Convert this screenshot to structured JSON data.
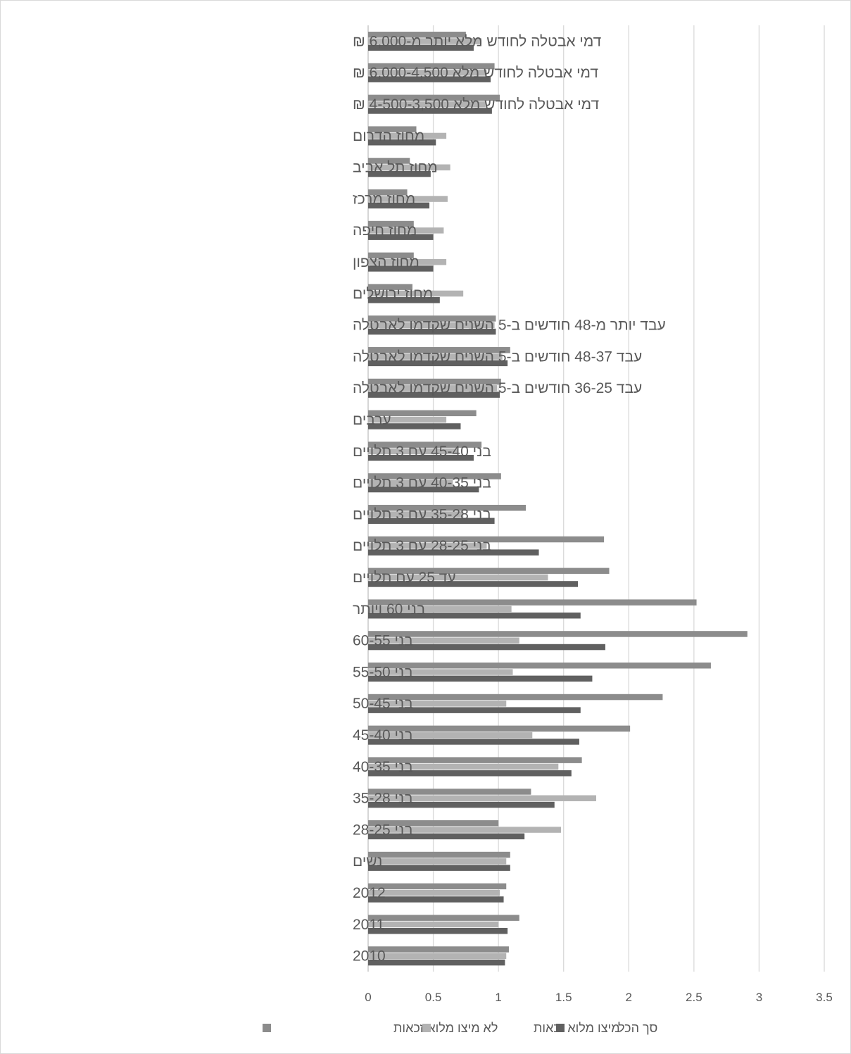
{
  "chart_data": {
    "type": "bar",
    "orientation": "horizontal",
    "categories": [
      "דמי אבטלה לחודש מלא יותר מ-6,000 ₪",
      "דמי אבטלה לחודש מלא 6,000-4,500 ₪",
      "דמי אבטלה לחודש מלא 4-500-3,500 ₪",
      "מחוז הדרום",
      "מחוז תל אביב",
      "מחוז מרכז",
      "מחוז חיפה",
      "מחוז הצפון",
      "מחוז ירושלים",
      "עבד יותר מ-48 חודשים ב-5 השנים שקדמו לאבטלה",
      "עבד 48-37 חודשים ב-5 השנים שקדמו לאבטלה",
      "עבד 36-25 חודשים ב-5 השנים שקדמו לאבטלה",
      "ערבים",
      "בני 45-40 עם 3 תלויים",
      "בני 40-35 עם 3 תלויים",
      "בני 35-28 עם 3 תלויים",
      "בני 28-25 עם 3 תלויים",
      "עד 25 עם תלויים",
      "בני 60 ויותר",
      "בני 60-55",
      "בני 55-50",
      "בני 50-45",
      "בני 45-40",
      "בני 40-35",
      "בני 35-28",
      "בני 28-25",
      "נשים",
      "2012",
      "2011",
      "2010"
    ],
    "series": [
      {
        "name": "לא מיצו מלוא זכאות",
        "color": "#8c8c8c",
        "values": [
          0.75,
          0.97,
          1.01,
          0.37,
          0.32,
          0.3,
          0.35,
          0.35,
          0.34,
          0.98,
          1.09,
          1.02,
          0.83,
          0.87,
          1.02,
          1.21,
          1.81,
          1.85,
          2.52,
          2.91,
          2.63,
          2.26,
          2.01,
          1.64,
          1.25,
          1.0,
          1.09,
          1.06,
          1.16,
          1.08
        ]
      },
      {
        "name": "מיצו מלוא זכאות",
        "color": "#b3b3b3",
        "values": [
          0.87,
          0.91,
          0.9,
          0.6,
          0.63,
          0.61,
          0.58,
          0.6,
          0.73,
          0.97,
          1.03,
          0.99,
          0.6,
          0.69,
          0.65,
          0.73,
          0.91,
          1.38,
          1.1,
          1.16,
          1.11,
          1.06,
          1.26,
          1.46,
          1.75,
          1.48,
          1.06,
          1.01,
          1.0,
          1.06
        ]
      },
      {
        "name": "סך הכל",
        "color": "#606060",
        "values": [
          0.81,
          0.94,
          0.95,
          0.52,
          0.48,
          0.47,
          0.5,
          0.5,
          0.55,
          0.98,
          1.07,
          1.01,
          0.71,
          0.81,
          0.85,
          0.97,
          1.31,
          1.61,
          1.63,
          1.82,
          1.72,
          1.63,
          1.62,
          1.56,
          1.43,
          1.2,
          1.09,
          1.04,
          1.07,
          1.05
        ]
      }
    ],
    "xlim": [
      0,
      3.5
    ],
    "x_ticks": [
      0,
      0.5,
      1,
      1.5,
      2,
      2.5,
      3,
      3.5
    ],
    "x_tick_labels": [
      "0",
      "0.5",
      "1",
      "1.5",
      "2",
      "2.5",
      "3",
      "3.5"
    ],
    "grid": true,
    "legend_position": "bottom",
    "title": "",
    "xlabel": "",
    "ylabel": "",
    "colors": {
      "gridline": "#d9d9d9",
      "text": "#595959"
    }
  }
}
